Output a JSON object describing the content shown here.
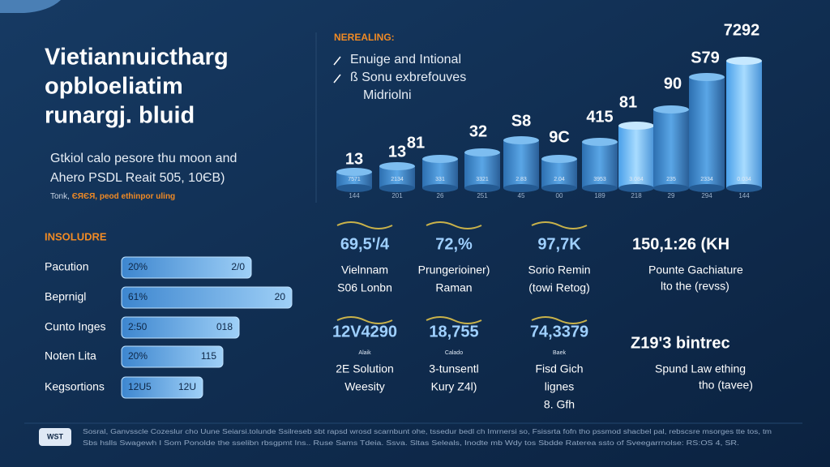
{
  "header": {
    "title_lines": [
      "Vietiannuictharg",
      "opbloeliatim",
      "runargj. bluid"
    ],
    "subtitle_lines": [
      "Gtkiol calo pesore thu moon and",
      "Ahero PSDL Reait 505, 10ЄB)"
    ],
    "note_lead": "Tonk,",
    "note_highlight": "ЄЯЄЯ, peod ethinpor uling"
  },
  "left_section": {
    "heading": "INSOLUDRE",
    "rows": [
      {
        "label": "Pacution",
        "left": "20%",
        "right": "2/0"
      },
      {
        "label": "Beprnigl",
        "left": "61%",
        "right": "20"
      },
      {
        "label": "Cunto Inges",
        "left": "2:50",
        "right": "018"
      },
      {
        "label": "Noten Lita",
        "left": "20%",
        "right": "115"
      },
      {
        "label": "Kegsortions",
        "left": "12U5",
        "right": "12U"
      }
    ]
  },
  "top_chart": {
    "heading": "NEREALING:",
    "legend": [
      "Enuige and Intional",
      "ß Sonu exbrefouves",
      "Midriolni"
    ],
    "top_labels": [
      "13",
      "13",
      "81",
      "32",
      "S8",
      "9C",
      "415",
      "81",
      "90",
      "S79",
      "7292"
    ],
    "inner_labels": [
      "7571",
      "2134",
      "331",
      "3321",
      "2.83",
      "2.04",
      "3953",
      "3.084",
      "235",
      "2334",
      "0.034"
    ],
    "axis_labels": [
      "144",
      "201",
      "26",
      "251",
      "45",
      "00",
      "189",
      "218",
      "29",
      "294",
      "144"
    ]
  },
  "grid": {
    "row1": [
      {
        "value": "69,5'/4",
        "lines": [
          "Vielnnam",
          "S06 Lonbn"
        ]
      },
      {
        "value": "72,%",
        "lines": [
          "Prungerioiner)",
          "Raman"
        ]
      },
      {
        "value": "97,7K",
        "lines": [
          "Sorio Remin",
          "(towi Retog)"
        ]
      }
    ],
    "row2": [
      {
        "value": "12V4290",
        "caption": "Alaik",
        "lines": [
          "2E Solution",
          "Weesity"
        ]
      },
      {
        "value": "18,755",
        "caption": "Calado",
        "lines": [
          "3-tunsentl",
          "Kury Z4l)"
        ]
      },
      {
        "value": "74,3379",
        "caption": "Baek",
        "lines": [
          "Fisd Gich",
          "lignes",
          "8. Gfh"
        ]
      }
    ]
  },
  "right_stats": [
    {
      "value": "150,1:26 (KH",
      "lines": [
        "Pounte Gachiature",
        "lto the (revss)"
      ]
    },
    {
      "value": "Z19'3 bintrec",
      "lines": [
        "Spund Law ething",
        "tho (tavee)"
      ]
    }
  ],
  "footer": {
    "logo": "WST",
    "lines": [
      "Sosral, Ganvsscle Cozeslur cho Uune Seiarsi.tolunde Ssilreseb sbt rapsd wrosd scarnbunt ohe, tssedur bedl ch Imrnersi so, Fsissrta fofn tho pssmod shacbel pal, rebscsre msorges tte tos, tm",
      "Sbs hslls Swagewh I Som Ponolde the sselibn rbsgpmt Ins.. Ruse Sams Tdeia. Ssva. Sltas Seleals, Inodte mb Wdy tos Sbdde Raterea ssto of Sveegarrnolse: RS:OS 4, SR."
    ]
  }
}
